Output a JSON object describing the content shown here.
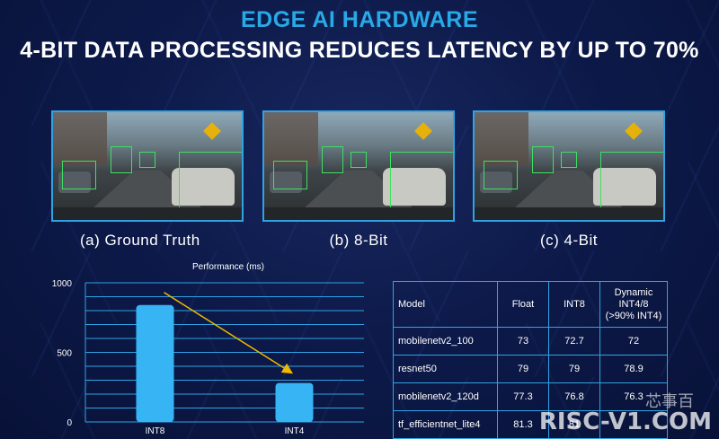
{
  "header": {
    "title": "EDGE AI HARDWARE",
    "subtitle": "4-BIT DATA PROCESSING REDUCES LATENCY BY UP TO 70%"
  },
  "images": [
    {
      "caption": "(a) Ground Truth"
    },
    {
      "caption": "(b) 8-Bit"
    },
    {
      "caption": "(c) 4-Bit"
    }
  ],
  "chart_data": {
    "type": "bar",
    "title": "Performance (ms)",
    "categories": [
      "INT8",
      "INT4"
    ],
    "values": [
      840,
      280
    ],
    "ylim": [
      0,
      1000
    ],
    "yticks": [
      "0",
      "500",
      "1000"
    ],
    "grid": true,
    "trend_arrow": true,
    "colors": {
      "bar": "#37b4f4",
      "arrow": "#f0b800",
      "grid": "#2fa3e3"
    }
  },
  "table": {
    "headers": [
      "Model",
      "Float",
      "INT8",
      "Dynamic INT4/8 (>90% INT4)"
    ],
    "header_lines": [
      "Dynamic",
      "INT4/8",
      "(>90% INT4)"
    ],
    "rows": [
      [
        "mobilenetv2_100",
        "73",
        "72.7",
        "72"
      ],
      [
        "resnet50",
        "79",
        "79",
        "78.9"
      ],
      [
        "mobilenetv2_120d",
        "77.3",
        "76.8",
        "76.3"
      ],
      [
        "tf_efficientnet_lite4",
        "81.3",
        "81",
        ""
      ]
    ]
  },
  "watermark": {
    "text": "RISC-V1.COM",
    "logo": "芯事百"
  }
}
